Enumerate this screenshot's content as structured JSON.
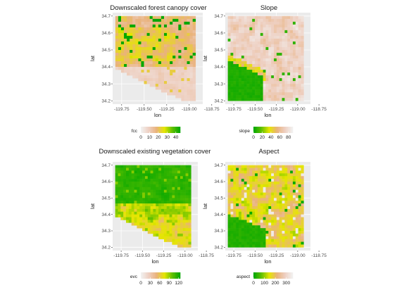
{
  "chart_data": [
    {
      "type": "heatmap",
      "title": "Downscaled forest canopy cover",
      "xlabel": "lon",
      "ylabel": "lat",
      "xlim": [
        -119.85,
        -118.85
      ],
      "ylim": [
        34.18,
        34.72
      ],
      "x_ticks": [
        "-119.75",
        "-119.50",
        "-119.25",
        "-119.00",
        "-118.75"
      ],
      "y_ticks": [
        "34.2",
        "34.3",
        "34.4",
        "34.5",
        "34.6",
        "34.7"
      ],
      "legend": {
        "title": "fcc",
        "ticks": [
          "0",
          "10",
          "20",
          "30",
          "40"
        ],
        "range": [
          0,
          45
        ],
        "placement": "bottom"
      },
      "color_scale": [
        "#f2f2f2",
        "#eed0c2",
        "#e9b27c",
        "#e6e600",
        "#5fc000",
        "#00a600"
      ],
      "grid": true
    },
    {
      "type": "heatmap",
      "title": "Slope",
      "xlabel": "lon",
      "ylabel": "lat",
      "xlim": [
        -119.85,
        -118.85
      ],
      "ylim": [
        34.18,
        34.72
      ],
      "x_ticks": [
        "-119.75",
        "-119.50",
        "-119.25",
        "-119.00",
        "-118.75"
      ],
      "y_ticks": [
        "34.2",
        "34.3",
        "34.4",
        "34.5",
        "34.6",
        "34.7"
      ],
      "legend": {
        "title": "slope",
        "ticks": [
          "0",
          "20",
          "40",
          "60",
          "80"
        ],
        "range": [
          0,
          90
        ],
        "placement": "bottom"
      },
      "color_scale": [
        "#00a600",
        "#5fc000",
        "#e6e600",
        "#e9b27c",
        "#eed0c2",
        "#f2f2f2"
      ],
      "grid": true
    },
    {
      "type": "heatmap",
      "title": "Downscaled existing vegetation cover",
      "xlabel": "lon",
      "ylabel": "lat",
      "xlim": [
        -119.85,
        -118.85
      ],
      "ylim": [
        34.18,
        34.72
      ],
      "x_ticks": [
        "-119.75",
        "-119.50",
        "-119.25",
        "-119.00",
        "-118.75"
      ],
      "y_ticks": [
        "34.2",
        "34.3",
        "34.4",
        "34.5",
        "34.6",
        "34.7"
      ],
      "legend": {
        "title": "evc",
        "ticks": [
          "0",
          "30",
          "60",
          "90",
          "120"
        ],
        "range": [
          0,
          125
        ],
        "placement": "bottom"
      },
      "color_scale": [
        "#f2f2f2",
        "#eed0c2",
        "#e9b27c",
        "#e6e600",
        "#5fc000",
        "#00a600"
      ],
      "grid": true
    },
    {
      "type": "heatmap",
      "title": "Aspect",
      "xlabel": "lon",
      "ylabel": "lat",
      "xlim": [
        -119.85,
        -118.85
      ],
      "ylim": [
        34.18,
        34.72
      ],
      "x_ticks": [
        "-119.75",
        "-119.50",
        "-119.25",
        "-119.00",
        "-118.75"
      ],
      "y_ticks": [
        "34.2",
        "34.3",
        "34.4",
        "34.5",
        "34.6",
        "34.7"
      ],
      "legend": {
        "title": "aspect",
        "ticks": [
          "0",
          "100",
          "200",
          "300"
        ],
        "range": [
          0,
          360
        ],
        "placement": "bottom"
      },
      "color_scale": [
        "#00a600",
        "#5fc000",
        "#e6e600",
        "#e9b27c",
        "#eed0c2",
        "#f2f2f2"
      ],
      "grid": true
    }
  ]
}
